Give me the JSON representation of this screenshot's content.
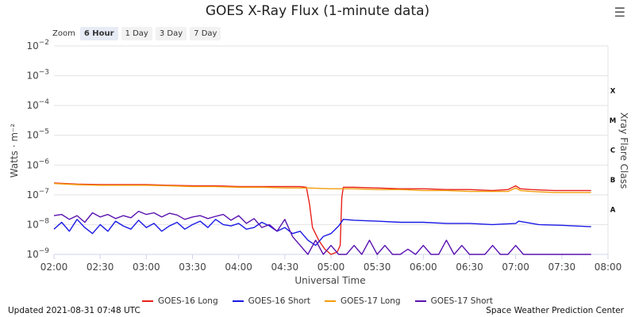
{
  "title": "GOES X-Ray Flux (1-minute data)",
  "menu_icon": "hamburger-menu-icon",
  "zoom": {
    "label": "Zoom",
    "buttons": [
      "6 Hour",
      "1 Day",
      "3 Day",
      "7 Day"
    ],
    "active": "6 Hour"
  },
  "footer": {
    "updated": "Updated 2021-08-31 07:48 UTC",
    "source": "Space Weather Prediction Center"
  },
  "chart_data": {
    "type": "line",
    "title": "GOES X-Ray Flux (1-minute data)",
    "xlabel": "Universal Time",
    "ylabel": "Watts · m⁻²",
    "y2label": "Xray Flare Class",
    "yscale": "log",
    "ylim": [
      1e-09,
      0.01
    ],
    "xlim": [
      "02:00",
      "08:00"
    ],
    "x_ticks": [
      "02:00",
      "02:30",
      "03:00",
      "03:30",
      "04:00",
      "04:30",
      "05:00",
      "05:30",
      "06:00",
      "06:30",
      "07:00",
      "07:30",
      "08:00"
    ],
    "y_ticks": [
      {
        "base": "10",
        "exp": "−2"
      },
      {
        "base": "10",
        "exp": "−3"
      },
      {
        "base": "10",
        "exp": "−4"
      },
      {
        "base": "10",
        "exp": "−5"
      },
      {
        "base": "10",
        "exp": "−6"
      },
      {
        "base": "10",
        "exp": "−7"
      },
      {
        "base": "10",
        "exp": "−8"
      },
      {
        "base": "10",
        "exp": "−9"
      }
    ],
    "flare_classes": [
      {
        "label": "X",
        "value": 0.0001
      },
      {
        "label": "M",
        "value": 1e-05
      },
      {
        "label": "C",
        "value": 1e-06
      },
      {
        "label": "B",
        "value": 1e-07
      },
      {
        "label": "A",
        "value": 1e-08
      }
    ],
    "grid": "horizontal",
    "legend": "bottom-center",
    "series": [
      {
        "name": "GOES-16 Long",
        "color": "#e8211a",
        "x": [
          "02:00",
          "02:15",
          "02:30",
          "02:45",
          "03:00",
          "03:15",
          "03:30",
          "03:45",
          "04:00",
          "04:15",
          "04:30",
          "04:40",
          "04:44",
          "04:46",
          "04:48",
          "04:52",
          "04:56",
          "05:00",
          "05:04",
          "05:06",
          "05:07",
          "05:08",
          "05:15",
          "05:30",
          "05:45",
          "06:00",
          "06:15",
          "06:30",
          "06:45",
          "06:55",
          "07:00",
          "07:03",
          "07:10",
          "07:25",
          "07:40",
          "07:49"
        ],
        "y": [
          2.5e-07,
          2.3e-07,
          2.2e-07,
          2.2e-07,
          2.2e-07,
          2.1e-07,
          2e-07,
          2e-07,
          1.9e-07,
          1.9e-07,
          1.9e-07,
          1.9e-07,
          1.8e-07,
          5e-08,
          8e-09,
          3e-09,
          1.5e-09,
          1e-09,
          1.2e-09,
          2e-09,
          8e-08,
          1.8e-07,
          1.8e-07,
          1.7e-07,
          1.6e-07,
          1.6e-07,
          1.5e-07,
          1.5e-07,
          1.4e-07,
          1.5e-07,
          2e-07,
          1.6e-07,
          1.5e-07,
          1.4e-07,
          1.4e-07,
          1.4e-07
        ]
      },
      {
        "name": "GOES-16 Short",
        "color": "#1a1ae6",
        "x": [
          "02:00",
          "02:05",
          "02:10",
          "02:15",
          "02:20",
          "02:25",
          "02:30",
          "02:35",
          "02:40",
          "02:45",
          "02:50",
          "02:55",
          "03:00",
          "03:05",
          "03:10",
          "03:15",
          "03:20",
          "03:25",
          "03:30",
          "03:35",
          "03:40",
          "03:45",
          "03:50",
          "03:55",
          "04:00",
          "04:05",
          "04:10",
          "04:15",
          "04:20",
          "04:25",
          "04:30",
          "04:35",
          "04:40",
          "04:45",
          "04:50",
          "04:55",
          "05:00",
          "05:05",
          "05:08",
          "05:15",
          "05:30",
          "05:45",
          "06:00",
          "06:15",
          "06:30",
          "06:45",
          "07:00",
          "07:02",
          "07:15",
          "07:30",
          "07:49"
        ],
        "y": [
          7e-09,
          1.2e-08,
          6e-09,
          1.5e-08,
          8e-09,
          5e-09,
          1e-08,
          6e-09,
          1.3e-08,
          9e-09,
          7e-09,
          1.4e-08,
          8e-09,
          1.1e-08,
          6e-09,
          9e-09,
          1.2e-08,
          7e-09,
          1e-08,
          1.3e-08,
          8e-09,
          1.5e-08,
          1e-08,
          9e-09,
          1.1e-08,
          7e-09,
          8e-09,
          1.2e-08,
          9e-09,
          6e-09,
          8e-09,
          5e-09,
          6e-09,
          3e-09,
          2e-09,
          4e-09,
          5e-09,
          9e-09,
          1.5e-08,
          1.4e-08,
          1.3e-08,
          1.2e-08,
          1.2e-08,
          1.1e-08,
          1.1e-08,
          1e-08,
          1.1e-08,
          1.3e-08,
          1e-08,
          9.5e-09,
          8.5e-09
        ]
      },
      {
        "name": "GOES-17 Long",
        "color": "#f29d0c",
        "x": [
          "02:00",
          "02:15",
          "02:30",
          "02:45",
          "03:00",
          "03:15",
          "03:30",
          "03:45",
          "04:00",
          "04:15",
          "04:30",
          "04:45",
          "05:00",
          "05:15",
          "05:30",
          "05:45",
          "06:00",
          "06:15",
          "06:30",
          "06:45",
          "06:55",
          "07:00",
          "07:03",
          "07:10",
          "07:25",
          "07:40",
          "07:49"
        ],
        "y": [
          2.4e-07,
          2.2e-07,
          2.1e-07,
          2.1e-07,
          2.1e-07,
          2e-07,
          1.9e-07,
          1.9e-07,
          1.8e-07,
          1.8e-07,
          1.7e-07,
          1.7e-07,
          1.6e-07,
          1.6e-07,
          1.5e-07,
          1.5e-07,
          1.4e-07,
          1.4e-07,
          1.3e-07,
          1.3e-07,
          1.3e-07,
          1.7e-07,
          1.4e-07,
          1.3e-07,
          1.2e-07,
          1.2e-07,
          1.2e-07
        ]
      },
      {
        "name": "GOES-17 Short",
        "color": "#5a12b0",
        "x": [
          "02:00",
          "02:05",
          "02:10",
          "02:15",
          "02:20",
          "02:25",
          "02:30",
          "02:35",
          "02:40",
          "02:45",
          "02:50",
          "02:55",
          "03:00",
          "03:05",
          "03:10",
          "03:15",
          "03:20",
          "03:25",
          "03:30",
          "03:35",
          "03:40",
          "03:45",
          "03:50",
          "03:55",
          "04:00",
          "04:05",
          "04:10",
          "04:15",
          "04:20",
          "04:25",
          "04:30",
          "04:35",
          "04:40",
          "04:45",
          "04:50",
          "04:55",
          "05:00",
          "05:05",
          "05:10",
          "05:15",
          "05:20",
          "05:25",
          "05:30",
          "05:35",
          "05:40",
          "05:45",
          "05:50",
          "05:55",
          "06:00",
          "06:05",
          "06:10",
          "06:15",
          "06:20",
          "06:25",
          "06:30",
          "06:35",
          "06:40",
          "06:45",
          "06:50",
          "06:55",
          "07:00",
          "07:05",
          "07:10",
          "07:15",
          "07:20",
          "07:25",
          "07:30",
          "07:35",
          "07:40",
          "07:45",
          "07:49"
        ],
        "y": [
          2e-08,
          2.2e-08,
          1.5e-08,
          2e-08,
          1.2e-08,
          2.5e-08,
          1.8e-08,
          2.2e-08,
          1.6e-08,
          2e-08,
          1.7e-08,
          2.8e-08,
          2.2e-08,
          2.5e-08,
          1.8e-08,
          2.4e-08,
          2.1e-08,
          1.5e-08,
          1.8e-08,
          2e-08,
          1.6e-08,
          1.9e-08,
          2.2e-08,
          1.4e-08,
          2e-08,
          1.1e-08,
          1.6e-08,
          8e-09,
          1e-08,
          6e-09,
          1.5e-08,
          4e-09,
          2e-09,
          1e-09,
          3e-09,
          1e-09,
          2e-09,
          1e-09,
          1e-09,
          2e-09,
          1e-09,
          3e-09,
          1e-09,
          2e-09,
          1e-09,
          1e-09,
          1.5e-09,
          1e-09,
          2e-09,
          1e-09,
          1e-09,
          3e-09,
          1e-09,
          2e-09,
          1e-09,
          1e-09,
          1e-09,
          2e-09,
          1e-09,
          1e-09,
          2e-09,
          1e-09,
          1e-09,
          1e-09,
          1e-09,
          1e-09,
          1e-09,
          1e-09,
          1e-09,
          1e-09,
          1e-09
        ]
      }
    ]
  }
}
